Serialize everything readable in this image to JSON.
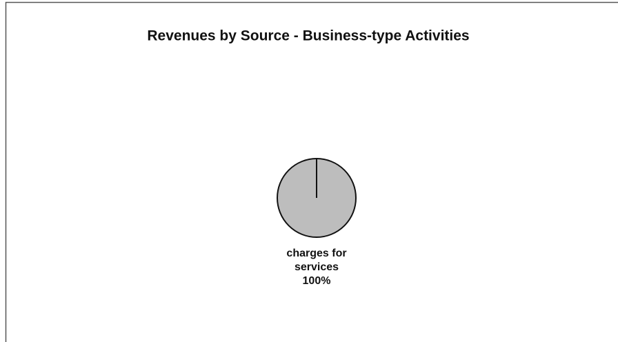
{
  "chart_data": {
    "type": "pie",
    "title": "Revenues by Source - Business-type Activities",
    "categories": [
      "charges for services"
    ],
    "values": [
      100
    ],
    "value_labels": [
      "100%"
    ],
    "colors": [
      "#bdbdbd"
    ]
  }
}
